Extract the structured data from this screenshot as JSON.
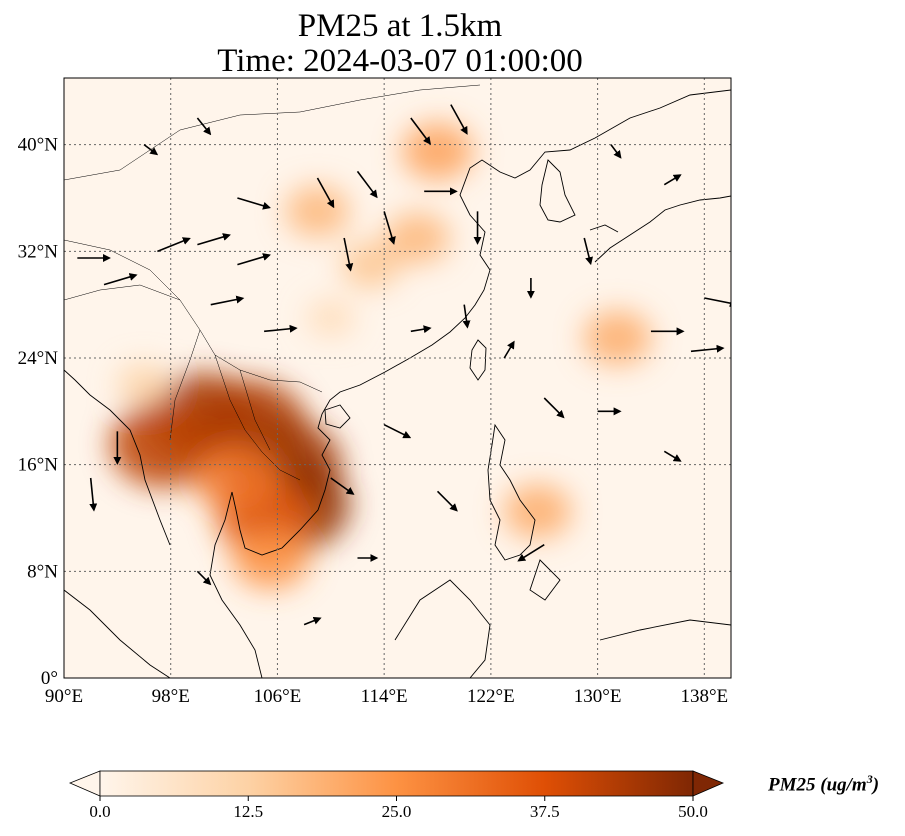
{
  "header": {
    "title_line1": "PM25 at 1.5km",
    "title_line2": "Time: 2024-03-07 01:00:00"
  },
  "map": {
    "lon_range": [
      90,
      140
    ],
    "lat_range": [
      0,
      45
    ],
    "x_ticks": [
      "90°E",
      "98°E",
      "106°E",
      "114°E",
      "122°E",
      "130°E",
      "138°E"
    ],
    "y_ticks": [
      "0°",
      "8°N",
      "16°N",
      "24°N",
      "32°N",
      "40°N"
    ],
    "gridlines": true,
    "background_color": "#fff5eb",
    "coastline_color": "#000000"
  },
  "colorbar": {
    "label_text": "PM25 (ug/m",
    "label_sup": "3",
    "label_close": ")",
    "ticks": [
      "0.0",
      "12.5",
      "25.0",
      "37.5",
      "50.0"
    ],
    "range": [
      0,
      50
    ],
    "extend": "both",
    "colormap": [
      "#fff5eb",
      "#fdd2a5",
      "#fd9243",
      "#df4f05",
      "#7f2704"
    ]
  },
  "pm25_field": [
    {
      "lon": 100.5,
      "lat": 19.5,
      "value": 45
    },
    {
      "lon": 97.5,
      "lat": 17.5,
      "value": 42
    },
    {
      "lon": 104.0,
      "lat": 19.0,
      "value": 44
    },
    {
      "lon": 106.5,
      "lat": 16.0,
      "value": 46
    },
    {
      "lon": 107.0,
      "lat": 13.0,
      "value": 48
    },
    {
      "lon": 105.0,
      "lat": 12.0,
      "value": 35
    },
    {
      "lon": 103.0,
      "lat": 15.0,
      "value": 30
    },
    {
      "lon": 105.5,
      "lat": 9.0,
      "value": 25
    },
    {
      "lon": 109.0,
      "lat": 35.0,
      "value": 18
    },
    {
      "lon": 113.0,
      "lat": 31.0,
      "value": 15
    },
    {
      "lon": 118.0,
      "lat": 39.5,
      "value": 22
    },
    {
      "lon": 116.5,
      "lat": 33.0,
      "value": 18
    },
    {
      "lon": 131.5,
      "lat": 25.5,
      "value": 20
    },
    {
      "lon": 125.5,
      "lat": 12.5,
      "value": 20
    },
    {
      "lon": 96.0,
      "lat": 22.0,
      "value": 12
    },
    {
      "lon": 110.0,
      "lat": 27.0,
      "value": 9
    }
  ],
  "wind_vectors": [
    {
      "lon": 91,
      "lat": 31.5,
      "u": 1.0,
      "v": 0.0
    },
    {
      "lon": 93,
      "lat": 29.5,
      "u": 1.0,
      "v": 0.3
    },
    {
      "lon": 97,
      "lat": 32,
      "u": 1.0,
      "v": 0.4
    },
    {
      "lon": 100,
      "lat": 32.5,
      "u": 1.0,
      "v": 0.3
    },
    {
      "lon": 103,
      "lat": 31,
      "u": 1.0,
      "v": 0.3
    },
    {
      "lon": 101,
      "lat": 28,
      "u": 1.0,
      "v": 0.2
    },
    {
      "lon": 105,
      "lat": 26,
      "u": 1.0,
      "v": 0.1
    },
    {
      "lon": 103,
      "lat": 36,
      "u": 1.0,
      "v": -0.3
    },
    {
      "lon": 109,
      "lat": 37.5,
      "u": 0.5,
      "v": -0.9
    },
    {
      "lon": 112,
      "lat": 38,
      "u": 0.6,
      "v": -0.8
    },
    {
      "lon": 114,
      "lat": 35,
      "u": 0.3,
      "v": -1.0
    },
    {
      "lon": 111,
      "lat": 33,
      "u": 0.2,
      "v": -1.0
    },
    {
      "lon": 116,
      "lat": 42,
      "u": 0.6,
      "v": -0.8
    },
    {
      "lon": 119,
      "lat": 43,
      "u": 0.5,
      "v": -0.9
    },
    {
      "lon": 117,
      "lat": 36.5,
      "u": 1.0,
      "v": 0.0
    },
    {
      "lon": 121,
      "lat": 35,
      "u": 0.0,
      "v": -1.0
    },
    {
      "lon": 134,
      "lat": 26,
      "u": 1.0,
      "v": 0.0
    },
    {
      "lon": 137,
      "lat": 24.5,
      "u": 1.0,
      "v": 0.1
    },
    {
      "lon": 138,
      "lat": 28.5,
      "u": 1.0,
      "v": -0.2
    },
    {
      "lon": 94,
      "lat": 18.5,
      "u": 0.0,
      "v": -1.0
    },
    {
      "lon": 92,
      "lat": 15,
      "u": 0.1,
      "v": -1.0
    },
    {
      "lon": 110,
      "lat": 15,
      "u": 0.7,
      "v": -0.5
    },
    {
      "lon": 114,
      "lat": 19,
      "u": 0.8,
      "v": -0.4
    },
    {
      "lon": 118,
      "lat": 14,
      "u": 0.6,
      "v": -0.6
    },
    {
      "lon": 126,
      "lat": 10,
      "u": -0.8,
      "v": -0.5
    },
    {
      "lon": 126,
      "lat": 21,
      "u": 0.6,
      "v": -0.6
    },
    {
      "lon": 130,
      "lat": 20,
      "u": 0.7,
      "v": 0.0
    },
    {
      "lon": 125,
      "lat": 30,
      "u": 0.0,
      "v": -0.6
    },
    {
      "lon": 129,
      "lat": 33,
      "u": 0.2,
      "v": -0.8
    },
    {
      "lon": 135,
      "lat": 17,
      "u": 0.5,
      "v": -0.3
    },
    {
      "lon": 100,
      "lat": 8,
      "u": 0.4,
      "v": -0.4
    },
    {
      "lon": 108,
      "lat": 4,
      "u": 0.5,
      "v": 0.2
    },
    {
      "lon": 112,
      "lat": 9,
      "u": 0.6,
      "v": 0.0
    },
    {
      "lon": 96,
      "lat": 40,
      "u": 0.4,
      "v": -0.3
    },
    {
      "lon": 100,
      "lat": 42,
      "u": 0.4,
      "v": -0.5
    },
    {
      "lon": 131,
      "lat": 40,
      "u": 0.3,
      "v": -0.4
    },
    {
      "lon": 135,
      "lat": 37,
      "u": 0.5,
      "v": 0.3
    },
    {
      "lon": 123,
      "lat": 24,
      "u": 0.3,
      "v": 0.5
    },
    {
      "lon": 116,
      "lat": 26,
      "u": 0.6,
      "v": 0.1
    },
    {
      "lon": 120,
      "lat": 28,
      "u": 0.1,
      "v": -0.7
    }
  ]
}
